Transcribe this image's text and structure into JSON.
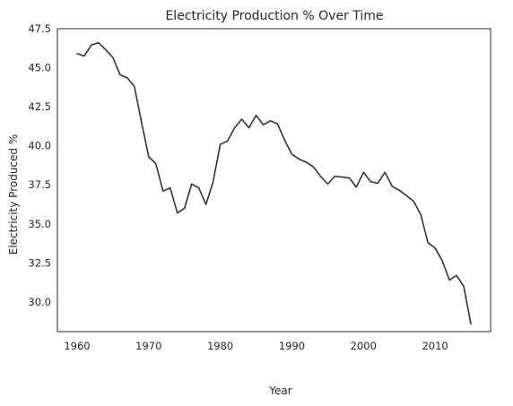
{
  "chart_data": {
    "type": "line",
    "title": "Electricity Production % Over Time",
    "xlabel": "Year",
    "ylabel": "Electricity Produced %",
    "xlim": [
      1957.25,
      2017.75
    ],
    "ylim": [
      28.1,
      47.5
    ],
    "xticks": [
      1960,
      1970,
      1980,
      1990,
      2000,
      2010
    ],
    "xtick_labels": [
      "1960",
      "1970",
      "1980",
      "1990",
      "2000",
      "2010"
    ],
    "yticks": [
      30.0,
      32.5,
      35.0,
      37.5,
      40.0,
      42.5,
      45.0,
      47.5
    ],
    "ytick_labels": [
      "30.0",
      "32.5",
      "35.0",
      "37.5",
      "40.0",
      "42.5",
      "45.0",
      "47.5"
    ],
    "grid": false,
    "colors": {
      "line": "#333333",
      "frame": "#262626",
      "text": "#262626"
    },
    "series": [
      {
        "x": [
          1960,
          1961,
          1962,
          1963,
          1964,
          1965,
          1966,
          1967,
          1968,
          1969,
          1970,
          1971,
          1972,
          1973,
          1974,
          1975,
          1976,
          1977,
          1978,
          1979,
          1980,
          1981,
          1982,
          1983,
          1984,
          1985,
          1986,
          1987,
          1988,
          1989,
          1990,
          1991,
          1992,
          1993,
          1994,
          1995,
          1996,
          1997,
          1998,
          1999,
          2000,
          2001,
          2002,
          2003,
          2004,
          2005,
          2006,
          2007,
          2008,
          2009,
          2010,
          2011,
          2012,
          2013,
          2014,
          2015
        ],
        "values": [
          45.9,
          45.75,
          46.45,
          46.6,
          46.15,
          45.65,
          44.55,
          44.35,
          43.8,
          41.5,
          39.3,
          38.85,
          37.1,
          37.3,
          35.7,
          36.0,
          37.55,
          37.3,
          36.25,
          37.7,
          40.1,
          40.3,
          41.15,
          41.7,
          41.15,
          41.95,
          41.35,
          41.6,
          41.4,
          40.35,
          39.45,
          39.15,
          38.95,
          38.65,
          38.05,
          37.55,
          38.05,
          38.0,
          37.95,
          37.35,
          38.3,
          37.7,
          37.6,
          38.3,
          37.4,
          37.15,
          36.8,
          36.45,
          35.6,
          33.8,
          33.45,
          32.65,
          31.4,
          31.7,
          31.0,
          28.6
        ]
      }
    ]
  }
}
